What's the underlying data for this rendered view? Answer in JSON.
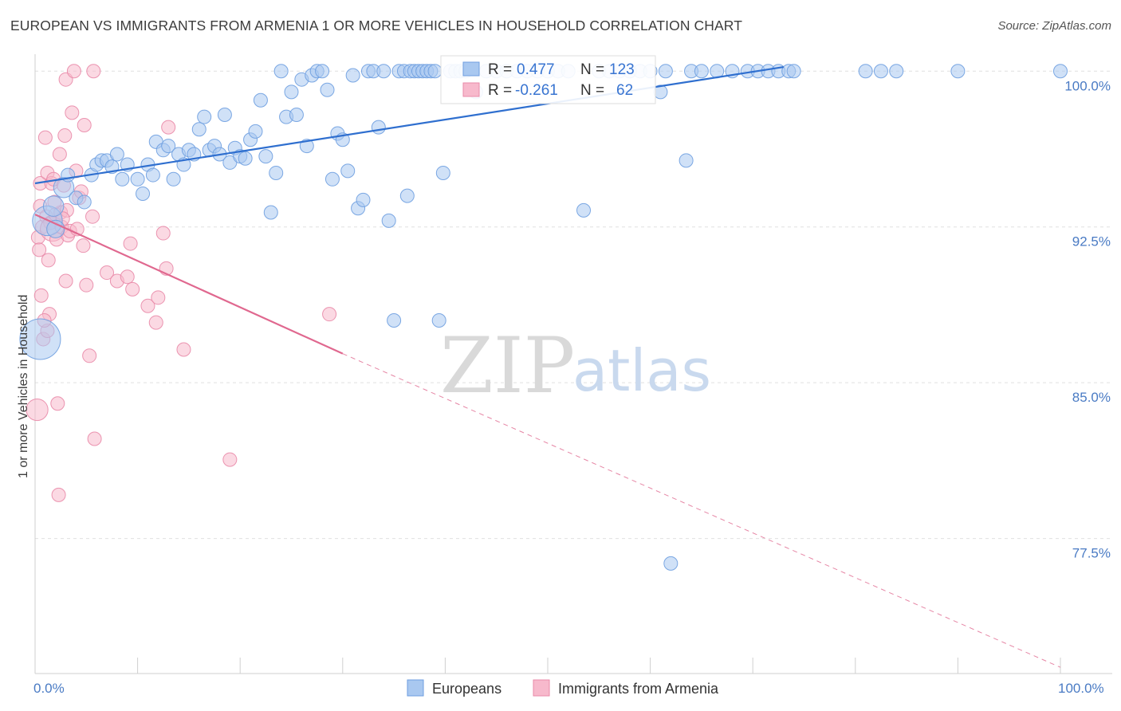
{
  "title": "EUROPEAN VS IMMIGRANTS FROM ARMENIA 1 OR MORE VEHICLES IN HOUSEHOLD CORRELATION CHART",
  "source": "Source: ZipAtlas.com",
  "watermark": {
    "zip": "ZIP",
    "atlas": "atlas"
  },
  "colors": {
    "blue_fill": "#a9c8f0",
    "blue_stroke": "#6e9ee0",
    "blue_line": "#2f6fcf",
    "pink_fill": "#f7b9cc",
    "pink_stroke": "#e98aa8",
    "pink_line": "#e0688f",
    "label_blue": "#4a7bc4",
    "grid": "#e0e0e0"
  },
  "legend": {
    "series1": {
      "r_label": "R =",
      "r_value": "0.477",
      "n_label": "N =",
      "n_value": "123"
    },
    "series2": {
      "r_label": "R =",
      "r_value": "-0.261",
      "n_label": "N =",
      "n_value": "62"
    }
  },
  "bottom_legend": [
    "Europeans",
    "Immigrants from Armenia"
  ],
  "chart_data": {
    "type": "scatter",
    "title": "EUROPEAN VS IMMIGRANTS FROM ARMENIA 1 OR MORE VEHICLES IN HOUSEHOLD CORRELATION CHART",
    "xlabel": "",
    "ylabel": "1 or more Vehicles in Household",
    "xlim": [
      0,
      100
    ],
    "ylim": [
      71,
      101.2
    ],
    "x_tick_labels": [
      "0.0%",
      "100.0%"
    ],
    "y_ticks": [
      100.0,
      92.5,
      85.0,
      77.5
    ],
    "y_tick_labels": [
      "100.0%",
      "92.5%",
      "85.0%",
      "77.5%"
    ],
    "grid": true,
    "series": [
      {
        "name": "Europeans",
        "color": "#a9c8f0",
        "trend": {
          "x": [
            0,
            73
          ],
          "y": [
            94.6,
            100.2
          ],
          "dashed_to": null
        },
        "points": [
          {
            "x": 0.5,
            "y": 87.1,
            "s": 3
          },
          {
            "x": 1.2,
            "y": 92.8,
            "s": 2.2
          },
          {
            "x": 1.8,
            "y": 93.5,
            "s": 1.5
          },
          {
            "x": 2.0,
            "y": 92.4,
            "s": 1.3
          },
          {
            "x": 2.8,
            "y": 94.4,
            "s": 1.5
          },
          {
            "x": 3.2,
            "y": 95.0
          },
          {
            "x": 4.0,
            "y": 93.9
          },
          {
            "x": 4.8,
            "y": 93.7
          },
          {
            "x": 5.5,
            "y": 95.0
          },
          {
            "x": 6.0,
            "y": 95.5
          },
          {
            "x": 6.5,
            "y": 95.7
          },
          {
            "x": 7.0,
            "y": 95.7
          },
          {
            "x": 7.5,
            "y": 95.4
          },
          {
            "x": 8.0,
            "y": 96.0
          },
          {
            "x": 8.5,
            "y": 94.8
          },
          {
            "x": 9.0,
            "y": 95.5
          },
          {
            "x": 10.0,
            "y": 94.8
          },
          {
            "x": 10.5,
            "y": 94.1
          },
          {
            "x": 11.0,
            "y": 95.5
          },
          {
            "x": 11.5,
            "y": 95.0
          },
          {
            "x": 11.8,
            "y": 96.6
          },
          {
            "x": 12.5,
            "y": 96.2
          },
          {
            "x": 13.0,
            "y": 96.4
          },
          {
            "x": 13.5,
            "y": 94.8
          },
          {
            "x": 14.0,
            "y": 96.0
          },
          {
            "x": 14.5,
            "y": 95.5
          },
          {
            "x": 15.0,
            "y": 96.2
          },
          {
            "x": 15.5,
            "y": 96.0
          },
          {
            "x": 16.0,
            "y": 97.2
          },
          {
            "x": 16.5,
            "y": 97.8
          },
          {
            "x": 17.0,
            "y": 96.2
          },
          {
            "x": 17.5,
            "y": 96.4
          },
          {
            "x": 18.0,
            "y": 96.0
          },
          {
            "x": 18.5,
            "y": 97.9
          },
          {
            "x": 19.0,
            "y": 95.6
          },
          {
            "x": 19.5,
            "y": 96.3
          },
          {
            "x": 20.0,
            "y": 95.9
          },
          {
            "x": 20.5,
            "y": 95.8
          },
          {
            "x": 21.0,
            "y": 96.7
          },
          {
            "x": 21.5,
            "y": 97.1
          },
          {
            "x": 22.0,
            "y": 98.6
          },
          {
            "x": 22.5,
            "y": 95.9
          },
          {
            "x": 23.0,
            "y": 93.2
          },
          {
            "x": 23.5,
            "y": 95.1
          },
          {
            "x": 24.0,
            "y": 100.0
          },
          {
            "x": 24.5,
            "y": 97.8
          },
          {
            "x": 25.0,
            "y": 99.0
          },
          {
            "x": 25.5,
            "y": 97.9
          },
          {
            "x": 26.0,
            "y": 99.6
          },
          {
            "x": 26.5,
            "y": 96.4
          },
          {
            "x": 27.0,
            "y": 99.8
          },
          {
            "x": 27.5,
            "y": 100.0
          },
          {
            "x": 28.0,
            "y": 100.0
          },
          {
            "x": 28.5,
            "y": 99.1
          },
          {
            "x": 29.0,
            "y": 94.8
          },
          {
            "x": 29.5,
            "y": 97.0
          },
          {
            "x": 30.0,
            "y": 96.7
          },
          {
            "x": 30.5,
            "y": 95.2
          },
          {
            "x": 31.0,
            "y": 99.8
          },
          {
            "x": 31.5,
            "y": 93.4
          },
          {
            "x": 32.0,
            "y": 93.8
          },
          {
            "x": 32.5,
            "y": 100.0
          },
          {
            "x": 33.0,
            "y": 100.0
          },
          {
            "x": 33.5,
            "y": 97.3
          },
          {
            "x": 34.0,
            "y": 100.0
          },
          {
            "x": 34.5,
            "y": 92.8
          },
          {
            "x": 35.0,
            "y": 88.0
          },
          {
            "x": 35.5,
            "y": 100.0
          },
          {
            "x": 36.0,
            "y": 100.0
          },
          {
            "x": 36.3,
            "y": 94.0
          },
          {
            "x": 36.6,
            "y": 100.0
          },
          {
            "x": 37.0,
            "y": 100.0
          },
          {
            "x": 37.4,
            "y": 100.0
          },
          {
            "x": 37.8,
            "y": 100.0
          },
          {
            "x": 38.2,
            "y": 100.0
          },
          {
            "x": 38.6,
            "y": 100.0
          },
          {
            "x": 39.0,
            "y": 100.0
          },
          {
            "x": 39.4,
            "y": 88.0
          },
          {
            "x": 39.8,
            "y": 95.1
          },
          {
            "x": 40.5,
            "y": 100.0
          },
          {
            "x": 41.0,
            "y": 100.0
          },
          {
            "x": 41.5,
            "y": 100.0
          },
          {
            "x": 42.0,
            "y": 100.0
          },
          {
            "x": 43.0,
            "y": 99.0
          },
          {
            "x": 44.0,
            "y": 100.0
          },
          {
            "x": 45.0,
            "y": 100.0
          },
          {
            "x": 46.0,
            "y": 100.0
          },
          {
            "x": 47.0,
            "y": 100.0
          },
          {
            "x": 48.0,
            "y": 100.0
          },
          {
            "x": 49.0,
            "y": 100.0
          },
          {
            "x": 50.0,
            "y": 100.0
          },
          {
            "x": 51.0,
            "y": 100.0
          },
          {
            "x": 52.0,
            "y": 100.0
          },
          {
            "x": 53.5,
            "y": 93.3
          },
          {
            "x": 55.0,
            "y": 100.0
          },
          {
            "x": 56.0,
            "y": 100.0
          },
          {
            "x": 57.0,
            "y": 100.0
          },
          {
            "x": 58.0,
            "y": 100.0
          },
          {
            "x": 59.0,
            "y": 100.0
          },
          {
            "x": 60.0,
            "y": 100.0
          },
          {
            "x": 61.0,
            "y": 99.0
          },
          {
            "x": 61.5,
            "y": 100.0
          },
          {
            "x": 62.0,
            "y": 76.3
          },
          {
            "x": 63.5,
            "y": 95.7
          },
          {
            "x": 64.0,
            "y": 100.0
          },
          {
            "x": 65.0,
            "y": 100.0
          },
          {
            "x": 66.5,
            "y": 100.0
          },
          {
            "x": 68.0,
            "y": 100.0
          },
          {
            "x": 69.5,
            "y": 100.0
          },
          {
            "x": 70.5,
            "y": 100.0
          },
          {
            "x": 71.5,
            "y": 100.0
          },
          {
            "x": 72.5,
            "y": 100.0
          },
          {
            "x": 73.5,
            "y": 100.0
          },
          {
            "x": 74.0,
            "y": 100.0
          },
          {
            "x": 81.0,
            "y": 100.0
          },
          {
            "x": 82.5,
            "y": 100.0
          },
          {
            "x": 84.0,
            "y": 100.0
          },
          {
            "x": 90.0,
            "y": 100.0
          },
          {
            "x": 100.0,
            "y": 100.0
          }
        ]
      },
      {
        "name": "Immigrants from Armenia",
        "color": "#f7b9cc",
        "trend": {
          "x": [
            0,
            30
          ],
          "y": [
            93.1,
            86.4
          ],
          "dashed_to": {
            "x": 100,
            "y": 71.3
          }
        },
        "points": [
          {
            "x": 0.2,
            "y": 83.7,
            "s": 1.6
          },
          {
            "x": 0.3,
            "y": 92.0
          },
          {
            "x": 0.4,
            "y": 91.4
          },
          {
            "x": 0.5,
            "y": 94.6
          },
          {
            "x": 0.5,
            "y": 93.5
          },
          {
            "x": 0.6,
            "y": 89.2
          },
          {
            "x": 0.7,
            "y": 92.5
          },
          {
            "x": 0.8,
            "y": 87.1
          },
          {
            "x": 1.0,
            "y": 96.8
          },
          {
            "x": 1.1,
            "y": 93.0
          },
          {
            "x": 1.2,
            "y": 95.1
          },
          {
            "x": 1.3,
            "y": 90.9
          },
          {
            "x": 1.4,
            "y": 88.3
          },
          {
            "x": 1.5,
            "y": 92.7
          },
          {
            "x": 1.6,
            "y": 94.6
          },
          {
            "x": 1.7,
            "y": 92.4,
            "s": 1.8
          },
          {
            "x": 1.8,
            "y": 94.8
          },
          {
            "x": 2.0,
            "y": 93.1
          },
          {
            "x": 2.1,
            "y": 91.9
          },
          {
            "x": 2.2,
            "y": 84.0
          },
          {
            "x": 2.3,
            "y": 79.6
          },
          {
            "x": 2.4,
            "y": 96.0
          },
          {
            "x": 2.5,
            "y": 93.2
          },
          {
            "x": 2.6,
            "y": 92.5
          },
          {
            "x": 2.8,
            "y": 94.5
          },
          {
            "x": 2.9,
            "y": 96.9
          },
          {
            "x": 3.0,
            "y": 89.9
          },
          {
            "x": 3.0,
            "y": 99.6
          },
          {
            "x": 3.2,
            "y": 92.1
          },
          {
            "x": 3.4,
            "y": 92.3
          },
          {
            "x": 3.6,
            "y": 98.0
          },
          {
            "x": 3.8,
            "y": 100.0
          },
          {
            "x": 4.0,
            "y": 95.2
          },
          {
            "x": 4.1,
            "y": 92.4
          },
          {
            "x": 4.3,
            "y": 93.9
          },
          {
            "x": 4.5,
            "y": 94.2
          },
          {
            "x": 4.7,
            "y": 91.6
          },
          {
            "x": 4.8,
            "y": 97.4
          },
          {
            "x": 5.0,
            "y": 89.7
          },
          {
            "x": 5.3,
            "y": 86.3
          },
          {
            "x": 5.6,
            "y": 93.0
          },
          {
            "x": 5.8,
            "y": 82.3
          },
          {
            "x": 5.7,
            "y": 100.0
          },
          {
            "x": 7.0,
            "y": 90.3
          },
          {
            "x": 8.0,
            "y": 89.9
          },
          {
            "x": 9.0,
            "y": 90.1
          },
          {
            "x": 9.3,
            "y": 91.7
          },
          {
            "x": 9.5,
            "y": 89.5
          },
          {
            "x": 11.0,
            "y": 88.7
          },
          {
            "x": 11.8,
            "y": 87.9
          },
          {
            "x": 12.0,
            "y": 89.1
          },
          {
            "x": 12.5,
            "y": 92.2
          },
          {
            "x": 12.8,
            "y": 90.5
          },
          {
            "x": 13.0,
            "y": 97.3
          },
          {
            "x": 14.5,
            "y": 86.6
          },
          {
            "x": 19.0,
            "y": 81.3
          },
          {
            "x": 28.7,
            "y": 88.3
          },
          {
            "x": 1.2,
            "y": 87.5
          },
          {
            "x": 0.9,
            "y": 88.0
          },
          {
            "x": 3.1,
            "y": 93.3
          },
          {
            "x": 2.7,
            "y": 92.9
          },
          {
            "x": 1.9,
            "y": 93.7
          }
        ]
      }
    ]
  }
}
